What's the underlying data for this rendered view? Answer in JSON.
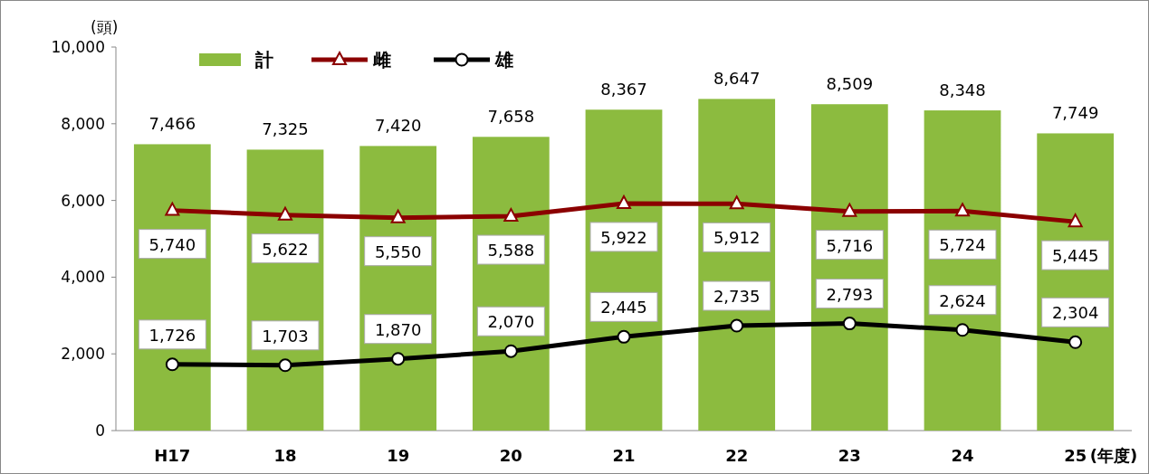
{
  "chart_data": {
    "type": "bar",
    "categories": [
      "H17",
      "18",
      "19",
      "20",
      "21",
      "22",
      "23",
      "24",
      "25"
    ],
    "xlabel": "(年度)",
    "ylabel": "(頭)",
    "ylim": [
      0,
      10000
    ],
    "yticks": [
      0,
      {
        "value": 2000,
        "label": "2,000"
      },
      {
        "value": 4000,
        "label": "4,000"
      },
      {
        "value": 6000,
        "label": "6,000"
      },
      {
        "value": 8000,
        "label": "8,000"
      },
      {
        "value": 10000,
        "label": "10,000"
      }
    ],
    "series": [
      {
        "name": "計",
        "color": "#8cbb3f",
        "values": [
          7466,
          7325,
          7420,
          7658,
          8367,
          8647,
          8509,
          8348,
          7749
        ],
        "value_labels": [
          "7,466",
          "7,325",
          "7,420",
          "7,658",
          "8,367",
          "8,647",
          "8,509",
          "8,348",
          "7,749"
        ]
      },
      {
        "name": "雌",
        "type": "line",
        "marker": "triangle",
        "color": "#8b0000",
        "values": [
          5740,
          5622,
          5550,
          5588,
          5922,
          5912,
          5716,
          5724,
          5445
        ],
        "value_labels": [
          "5,740",
          "5,622",
          "5,550",
          "5,588",
          "5,922",
          "5,912",
          "5,716",
          "5,724",
          "5,445"
        ]
      },
      {
        "name": "雄",
        "type": "line",
        "marker": "circle",
        "color": "#000000",
        "values": [
          1726,
          1703,
          1870,
          2070,
          2445,
          2735,
          2793,
          2624,
          2304
        ],
        "value_labels": [
          "1,726",
          "1,703",
          "1,870",
          "2,070",
          "2,445",
          "2,735",
          "2,793",
          "2,624",
          "2,304"
        ]
      }
    ],
    "legend": "top left",
    "grid": false
  }
}
